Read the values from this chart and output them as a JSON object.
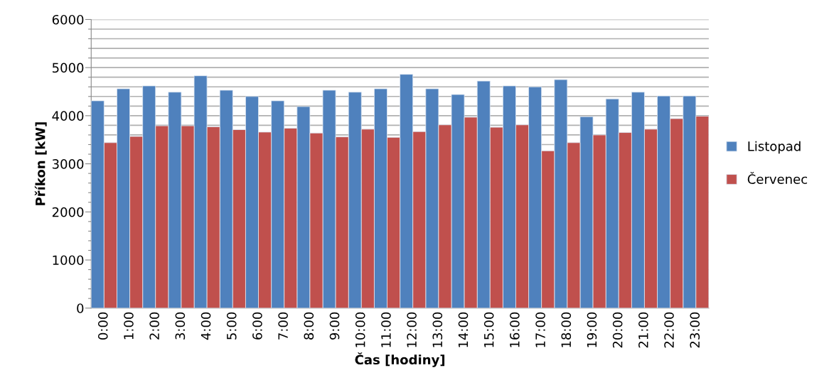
{
  "chart_data": {
    "type": "bar",
    "xlabel": "Čas [hodiny]",
    "ylabel": "Příkon [kW]",
    "categories": [
      "0:00",
      "1:00",
      "2:00",
      "3:00",
      "4:00",
      "5:00",
      "6:00",
      "7:00",
      "8:00",
      "9:00",
      "10:00",
      "11:00",
      "12:00",
      "13:00",
      "14:00",
      "15:00",
      "16:00",
      "17:00",
      "18:00",
      "19:00",
      "20:00",
      "21:00",
      "22:00",
      "23:00"
    ],
    "series": [
      {
        "name": "Listopad",
        "color": "#4f81bd",
        "values": [
          4310,
          4560,
          4620,
          4490,
          4830,
          4530,
          4400,
          4310,
          4190,
          4530,
          4490,
          4560,
          4860,
          4560,
          4440,
          4720,
          4620,
          4600,
          4750,
          3980,
          4350,
          4490,
          4410,
          4410
        ]
      },
      {
        "name": "Červenec",
        "color": "#c0504d",
        "values": [
          3440,
          3570,
          3790,
          3790,
          3770,
          3710,
          3660,
          3740,
          3640,
          3560,
          3720,
          3550,
          3670,
          3810,
          3970,
          3760,
          3810,
          3270,
          3440,
          3600,
          3650,
          3720,
          3940,
          3990
        ]
      }
    ],
    "ylim": [
      0,
      6000
    ],
    "yticks": [
      0,
      {
        "value": 200,
        "label": null
      },
      {
        "value": 400,
        "label": null
      },
      {
        "value": 600,
        "label": null
      },
      {
        "value": 800,
        "label": null
      },
      1000,
      {
        "value": 1200,
        "label": null
      },
      {
        "value": 1400,
        "label": null
      },
      {
        "value": 1600,
        "label": null
      },
      {
        "value": 1800,
        "label": null
      },
      2000,
      {
        "value": 2200,
        "label": null
      },
      {
        "value": 2400,
        "label": null
      },
      {
        "value": 2600,
        "label": null
      },
      {
        "value": 2800,
        "label": null
      },
      3000,
      {
        "value": 3200,
        "label": null
      },
      {
        "value": 3400,
        "label": null
      },
      {
        "value": 3600,
        "label": null
      },
      {
        "value": 3800,
        "label": null
      },
      4000,
      {
        "value": 4200,
        "label": null
      },
      {
        "value": 4400,
        "label": null
      },
      {
        "value": 4600,
        "label": null
      },
      {
        "value": 4800,
        "label": null
      },
      5000,
      {
        "value": 5200,
        "label": null
      },
      {
        "value": 5400,
        "label": null
      },
      {
        "value": 5600,
        "label": null
      },
      {
        "value": 5800,
        "label": null
      },
      6000
    ],
    "grid": "y",
    "legend": "right"
  }
}
